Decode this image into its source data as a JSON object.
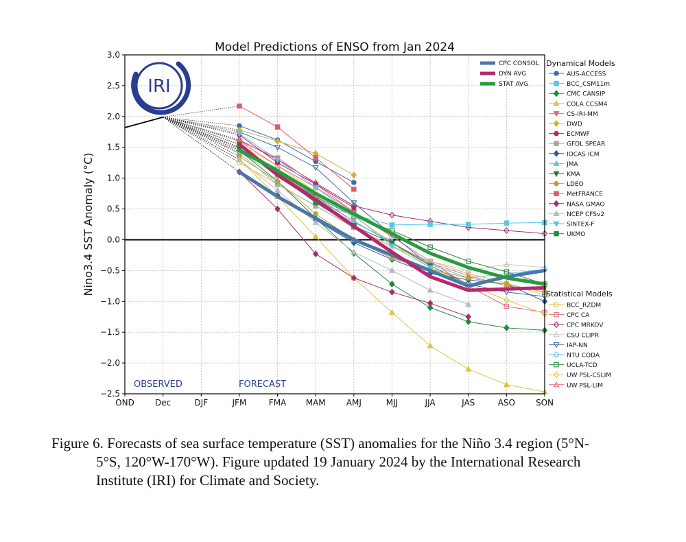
{
  "chart_data": {
    "type": "line",
    "title": "Model Predictions of ENSO from Jan 2024",
    "ylabel": "Nino3.4 SST Anomaly (°C)",
    "xlabel": "",
    "categories": [
      "OND",
      "Dec",
      "DJF",
      "JFM",
      "FMA",
      "MAM",
      "AMJ",
      "MJJ",
      "JJA",
      "JAS",
      "ASO",
      "SON"
    ],
    "ylim": [
      -2.5,
      3.0
    ],
    "yticks": [
      "3.0",
      "2.5",
      "2.0",
      "1.5",
      "1.0",
      "0.5",
      "0.0",
      "−0.5",
      "−1.0",
      "−1.5",
      "−2.0",
      "−2.5"
    ],
    "grid": true,
    "legend_position": "right",
    "annotations": {
      "observed": "OBSERVED",
      "forecast": "FORECAST",
      "logo": "IRI"
    },
    "observed": {
      "x": [
        "OND",
        "Dec"
      ],
      "values": [
        1.82,
        1.99
      ]
    },
    "legend_titles": {
      "dynamical": "Dynamical Models",
      "statistical": "Statistical Models"
    },
    "averages": [
      {
        "name": "CPC CONSOL",
        "color": "#4a77aa",
        "values": [
          1.1,
          0.7,
          0.35,
          0.0,
          -0.25,
          -0.5,
          -0.75,
          -0.6,
          -0.5
        ]
      },
      {
        "name": "DYN AVG",
        "color": "#b5286b",
        "values": [
          1.55,
          1.05,
          0.65,
          0.22,
          -0.2,
          -0.6,
          -0.82,
          -0.8,
          -0.78
        ]
      },
      {
        "name": "STAT AVG",
        "color": "#2a9a3c",
        "values": [
          1.45,
          1.12,
          0.75,
          0.42,
          0.1,
          -0.22,
          -0.45,
          -0.62,
          -0.72
        ]
      }
    ],
    "dynamical_models": [
      {
        "name": "AUS-ACCESS",
        "color": "#3a6fa8",
        "marker": "circle",
        "values": [
          1.85,
          1.62,
          1.27,
          0.93
        ]
      },
      {
        "name": "BCC_CSM11m",
        "color": "#58c7ea",
        "marker": "square",
        "values": [
          1.55,
          1.05,
          0.6,
          0.4,
          0.24,
          0.25,
          0.25,
          0.27,
          0.28
        ]
      },
      {
        "name": "CMC CANSIP",
        "color": "#1f8a3a",
        "marker": "diamond",
        "values": [
          1.45,
          0.95,
          0.35,
          -0.22,
          -0.72,
          -1.1,
          -1.33,
          -1.43,
          -1.47
        ]
      },
      {
        "name": "COLA CCSM4",
        "color": "#d9c345",
        "marker": "triangle-up",
        "values": [
          1.3,
          0.7,
          0.05,
          -0.62,
          -1.18,
          -1.72,
          -2.1,
          -2.35,
          -2.47
        ]
      },
      {
        "name": "CS-IRI-MM",
        "color": "#e56b7d",
        "marker": "triangle-down",
        "values": [
          1.6,
          1.33,
          0.9,
          0.45
        ]
      },
      {
        "name": "DWD",
        "color": "#c8b43c",
        "marker": "diamond",
        "values": [
          1.78,
          1.6,
          1.4,
          1.05
        ]
      },
      {
        "name": "ECMWF",
        "color": "#a1306a",
        "marker": "circle",
        "values": [
          1.7,
          1.25,
          0.9,
          0.52
        ]
      },
      {
        "name": "GFDL SPEAR",
        "color": "#a8a8a8",
        "marker": "square",
        "values": [
          1.4,
          0.9,
          0.55,
          0.2
        ]
      },
      {
        "name": "IOCAS ICM",
        "color": "#2f5f93",
        "marker": "diamond",
        "values": [
          1.1,
          0.72,
          0.32,
          -0.05,
          -0.32,
          -0.55,
          -0.65,
          -0.72,
          -1.0
        ]
      },
      {
        "name": "JMA",
        "color": "#5cc3e8",
        "marker": "triangle-up",
        "values": [
          1.5,
          1.05,
          0.6,
          0.28,
          -0.02
        ]
      },
      {
        "name": "KMA",
        "color": "#1f7a3a",
        "marker": "triangle-down",
        "values": [
          1.48,
          1.08,
          0.62,
          0.22,
          -0.05,
          -0.42
        ]
      },
      {
        "name": "LDEO",
        "color": "#b5a43a",
        "marker": "circle",
        "values": [
          1.35,
          0.95,
          0.42,
          0.0,
          -0.3,
          -0.48,
          -0.62,
          -0.72,
          -0.85
        ]
      },
      {
        "name": "MetFRANCE",
        "color": "#e05a6a",
        "marker": "square",
        "values": [
          2.17,
          1.83,
          1.33,
          0.82
        ]
      },
      {
        "name": "NASA GMAO",
        "color": "#a1306a",
        "marker": "diamond",
        "values": [
          1.1,
          0.5,
          -0.23,
          -0.62,
          -0.85,
          -1.03,
          -1.25
        ]
      },
      {
        "name": "NCEP CFSv2",
        "color": "#b8b8b8",
        "marker": "triangle-up",
        "values": [
          1.3,
          0.8,
          0.28,
          -0.2,
          -0.5,
          -0.82,
          -1.05
        ]
      },
      {
        "name": "SINTEX-F",
        "color": "#5cc3e8",
        "marker": "triangle-down",
        "values": [
          1.72,
          1.3,
          0.85,
          0.4,
          -0.1,
          -0.45
        ]
      },
      {
        "name": "UKMO",
        "color": "#2a8a3a",
        "marker": "square",
        "values": [
          1.55,
          1.1,
          0.6,
          0.23
        ]
      }
    ],
    "statistical_models": [
      {
        "name": "BCC_RZDM",
        "color": "#d9c345",
        "marker": "circle",
        "values": [
          1.25,
          0.9,
          0.55,
          0.2,
          -0.12,
          -0.35,
          -0.55,
          -0.7,
          -0.9
        ]
      },
      {
        "name": "CPC CA",
        "color": "#e56b7d",
        "marker": "square",
        "values": [
          1.6,
          1.2,
          0.85,
          0.45,
          0.05,
          -0.35,
          -0.75,
          -1.08,
          -1.18
        ]
      },
      {
        "name": "CPC MRKOV",
        "color": "#a1306a",
        "marker": "diamond",
        "values": [
          1.62,
          1.3,
          0.92,
          0.55,
          0.4,
          0.3,
          0.2,
          0.15,
          0.1
        ]
      },
      {
        "name": "CSU CLIPR",
        "color": "#c8c8c8",
        "marker": "triangle-up",
        "values": [
          1.42,
          1.05,
          0.6,
          0.2,
          -0.1,
          -0.35,
          -0.5,
          -0.4,
          -0.45
        ]
      },
      {
        "name": "IAP-NN",
        "color": "#3a6fa8",
        "marker": "triangle-down",
        "values": [
          1.75,
          1.5,
          1.17,
          0.6,
          0.08,
          -0.42,
          -0.72,
          -0.85,
          -0.92
        ]
      },
      {
        "name": "NTU CODA",
        "color": "#5cc3e8",
        "marker": "circle",
        "values": [
          1.5,
          1.15,
          0.7,
          0.3,
          -0.05,
          -0.4,
          -0.62,
          -0.55,
          -0.48
        ]
      },
      {
        "name": "UCLA-TCD",
        "color": "#2a8a3a",
        "marker": "square",
        "values": [
          1.45,
          1.08,
          0.7,
          0.38,
          0.15,
          -0.12,
          -0.35,
          -0.52,
          -0.72
        ]
      },
      {
        "name": "UW PSL-CSLIM",
        "color": "#e0c84a",
        "marker": "diamond",
        "values": [
          1.55,
          1.2,
          0.78,
          0.38,
          -0.05,
          -0.45,
          -0.72,
          -0.98,
          -1.2
        ]
      },
      {
        "name": "UW PSL-LIM",
        "color": "#e56b7d",
        "marker": "triangle-up",
        "values": [
          1.5,
          1.1,
          0.68,
          0.3,
          -0.05,
          -0.38,
          -0.58,
          -0.75,
          -0.82
        ]
      }
    ]
  },
  "caption": {
    "line1": "Figure 6. Forecasts of sea surface temperature (SST) anomalies for the Niño 3.4 region (5°N-",
    "line2": "5°S, 120°W-170°W). Figure updated 19 January 2024 by the International Research",
    "line3": "Institute (IRI) for Climate and Society."
  }
}
